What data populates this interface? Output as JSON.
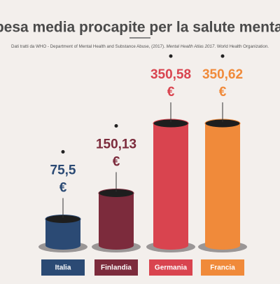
{
  "chart_data": {
    "type": "bar",
    "title": "Spesa media procapite per la salute mentale",
    "source": [
      "Dati tratti da WHO - Department of Mental Health and Substance Abuse, (2017). ",
      "Mental Health Atlas 2017",
      ". World Health Organization."
    ],
    "categories": [
      "Italia",
      "Finlandia",
      "Germania",
      "Francia"
    ],
    "values": [
      75.5,
      150.13,
      350.58,
      350.62
    ],
    "value_labels": [
      "75,5",
      "150,13",
      "350,58",
      "350,62"
    ],
    "currency": "€",
    "colors": [
      "#2b4a74",
      "#7c2b3c",
      "#d9444f",
      "#f08a3a"
    ]
  }
}
